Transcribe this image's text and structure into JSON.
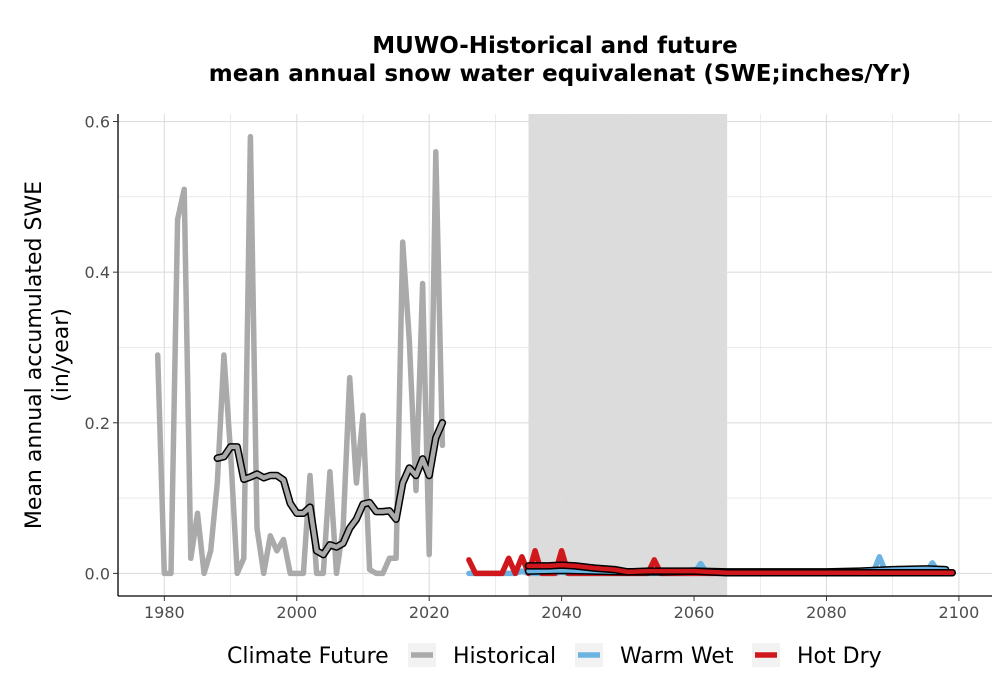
{
  "chart_data": {
    "type": "line",
    "title": "MUWO-Historical and future",
    "subtitle": "mean annual snow water equivalenat (SWE;inches/Yr)",
    "xlabel": "",
    "ylabel": "Mean annual accumulated SWE",
    "ylabel2": "(in/year)",
    "xlim": [
      1973,
      2105
    ],
    "ylim": [
      -0.03,
      0.61
    ],
    "xticks": [
      1980,
      2000,
      2020,
      2040,
      2060,
      2080,
      2100
    ],
    "yticks": [
      0.0,
      0.2,
      0.4,
      0.6
    ],
    "ytick_labels": [
      "0.0",
      "0.2",
      "0.4",
      "0.6"
    ],
    "grid": true,
    "legend_position": "bottom",
    "shaded_period": [
      2035,
      2065
    ],
    "colors": {
      "Historical": "#aaaaaa",
      "Warm Wet": "#6bb3e0",
      "Hot Dry": "#d0181c",
      "rolling_mean": "#000000",
      "shade": "#dcdcdc",
      "grid": "#dedede"
    },
    "legend": {
      "title": "Climate Future",
      "entries": [
        "Historical",
        "Warm Wet",
        "Hot Dry"
      ]
    },
    "series": [
      {
        "name": "Historical",
        "x": [
          1979,
          1980,
          1981,
          1982,
          1983,
          1984,
          1985,
          1986,
          1987,
          1988,
          1989,
          1990,
          1991,
          1992,
          1993,
          1994,
          1995,
          1996,
          1997,
          1998,
          1999,
          2000,
          2001,
          2002,
          2003,
          2004,
          2005,
          2006,
          2007,
          2008,
          2009,
          2010,
          2011,
          2012,
          2013,
          2014,
          2015,
          2016,
          2017,
          2018,
          2019,
          2020,
          2021,
          2022
        ],
        "values": [
          0.29,
          0.0,
          0.0,
          0.47,
          0.51,
          0.02,
          0.08,
          0.0,
          0.03,
          0.12,
          0.29,
          0.16,
          0.0,
          0.02,
          0.58,
          0.06,
          0.0,
          0.05,
          0.03,
          0.045,
          0.0,
          0.0,
          0.0,
          0.13,
          0.0,
          0.0,
          0.135,
          0.0,
          0.06,
          0.26,
          0.12,
          0.21,
          0.005,
          0.0,
          0.0,
          0.02,
          0.02,
          0.44,
          0.31,
          0.11,
          0.385,
          0.025,
          0.56,
          0.17
        ]
      },
      {
        "name": "Warm Wet",
        "x": [
          2026,
          2027,
          2028,
          2029,
          2030,
          2031,
          2032,
          2033,
          2034,
          2035,
          2036,
          2037,
          2038,
          2039,
          2040,
          2041,
          2042,
          2043,
          2044,
          2045,
          2046,
          2047,
          2048,
          2049,
          2050,
          2051,
          2052,
          2053,
          2054,
          2055,
          2056,
          2057,
          2058,
          2059,
          2060,
          2061,
          2062,
          2063,
          2064,
          2065,
          2066,
          2067,
          2068,
          2069,
          2070,
          2071,
          2072,
          2073,
          2074,
          2075,
          2076,
          2077,
          2078,
          2079,
          2080,
          2081,
          2082,
          2083,
          2084,
          2085,
          2086,
          2087,
          2088,
          2089,
          2090,
          2091,
          2092,
          2093,
          2094,
          2095,
          2096,
          2097,
          2098,
          2099
        ],
        "values": [
          0.0,
          0.0,
          0.0,
          0.0,
          0.0,
          0.0,
          0.0,
          0.0,
          0.003,
          0.0,
          0.0,
          0.0,
          0.0,
          0.0,
          0.002,
          0.0,
          0.0,
          0.0,
          0.0,
          0.0,
          0.0,
          0.0,
          0.0,
          0.0,
          0.0,
          0.0,
          0.0,
          0.0,
          0.0,
          0.0,
          0.0,
          0.0,
          0.0,
          0.0,
          0.0,
          0.013,
          0.0,
          0.0,
          0.0,
          0.0,
          0.0,
          0.0,
          0.0,
          0.0,
          0.0,
          0.0,
          0.0,
          0.0,
          0.0,
          0.0,
          0.0,
          0.0,
          0.0,
          0.0,
          0.0,
          0.0,
          0.0,
          0.0,
          0.0,
          0.0,
          0.0,
          0.0,
          0.022,
          0.0,
          0.0,
          0.0,
          0.0,
          0.0,
          0.0,
          0.0,
          0.014,
          0.0,
          0.0,
          0.0
        ]
      },
      {
        "name": "Hot Dry",
        "x": [
          2026,
          2027,
          2028,
          2029,
          2030,
          2031,
          2032,
          2033,
          2034,
          2035,
          2036,
          2037,
          2038,
          2039,
          2040,
          2041,
          2042,
          2043,
          2044,
          2045,
          2046,
          2047,
          2048,
          2049,
          2050,
          2051,
          2052,
          2053,
          2054,
          2055,
          2056,
          2057,
          2058,
          2059,
          2060,
          2061,
          2062,
          2063,
          2064,
          2065,
          2066,
          2067,
          2068,
          2069,
          2070,
          2071,
          2072,
          2073,
          2074,
          2075,
          2076,
          2077,
          2078,
          2079,
          2080,
          2081,
          2082,
          2083,
          2084,
          2085,
          2086,
          2087,
          2088,
          2089,
          2090,
          2091,
          2092,
          2093,
          2094,
          2095,
          2096,
          2097,
          2098,
          2099
        ],
        "values": [
          0.018,
          0.0,
          0.0,
          0.0,
          0.0,
          0.0,
          0.02,
          0.0,
          0.022,
          0.0,
          0.03,
          0.0,
          0.0,
          0.0,
          0.03,
          0.0,
          0.0,
          0.0,
          0.0,
          0.0,
          0.0,
          0.0,
          0.0,
          0.0,
          0.0,
          0.0,
          0.0,
          0.0,
          0.018,
          0.0,
          0.0,
          0.0,
          0.0,
          0.0,
          0.0,
          0.0,
          0.0,
          0.0,
          0.0,
          0.0,
          0.0,
          0.0,
          0.0,
          0.0,
          0.0,
          0.0,
          0.0,
          0.0,
          0.0,
          0.0,
          0.0,
          0.0,
          0.0,
          0.0,
          0.0,
          0.0,
          0.0,
          0.0,
          0.0,
          0.0,
          0.0,
          0.0,
          0.0,
          0.0,
          0.0,
          0.0,
          0.0,
          0.0,
          0.0,
          0.0,
          0.0,
          0.0,
          0.0,
          0.0
        ]
      }
    ],
    "rolling_means": [
      {
        "of": "Historical",
        "x": [
          1988,
          1989,
          1990,
          1991,
          1992,
          1993,
          1994,
          1995,
          1996,
          1997,
          1998,
          1999,
          2000,
          2001,
          2002,
          2003,
          2004,
          2005,
          2006,
          2007,
          2008,
          2009,
          2010,
          2011,
          2012,
          2013,
          2014,
          2015,
          2016,
          2017,
          2018,
          2019,
          2020,
          2021,
          2022
        ],
        "values": [
          0.153,
          0.155,
          0.168,
          0.168,
          0.125,
          0.128,
          0.132,
          0.127,
          0.13,
          0.13,
          0.124,
          0.093,
          0.08,
          0.08,
          0.088,
          0.03,
          0.025,
          0.038,
          0.035,
          0.04,
          0.06,
          0.072,
          0.092,
          0.094,
          0.082,
          0.082,
          0.083,
          0.072,
          0.12,
          0.14,
          0.13,
          0.152,
          0.13,
          0.18,
          0.2
        ]
      },
      {
        "of": "Warm Wet",
        "x": [
          2035,
          2040,
          2045,
          2050,
          2055,
          2060,
          2065,
          2070,
          2075,
          2080,
          2085,
          2090,
          2095,
          2098
        ],
        "values": [
          0.003,
          0.004,
          0.003,
          0.002,
          0.002,
          0.003,
          0.002,
          0.002,
          0.002,
          0.002,
          0.003,
          0.005,
          0.006,
          0.005
        ]
      },
      {
        "of": "Hot Dry",
        "x": [
          2035,
          2038,
          2040,
          2042,
          2045,
          2048,
          2050,
          2053,
          2055,
          2060,
          2065,
          2070,
          2075,
          2080,
          2085,
          2090,
          2095,
          2099
        ],
        "values": [
          0.01,
          0.01,
          0.011,
          0.01,
          0.007,
          0.005,
          0.002,
          0.003,
          0.003,
          0.003,
          0.001,
          0.001,
          0.001,
          0.001,
          0.001,
          0.001,
          0.001,
          0.001
        ]
      }
    ]
  }
}
